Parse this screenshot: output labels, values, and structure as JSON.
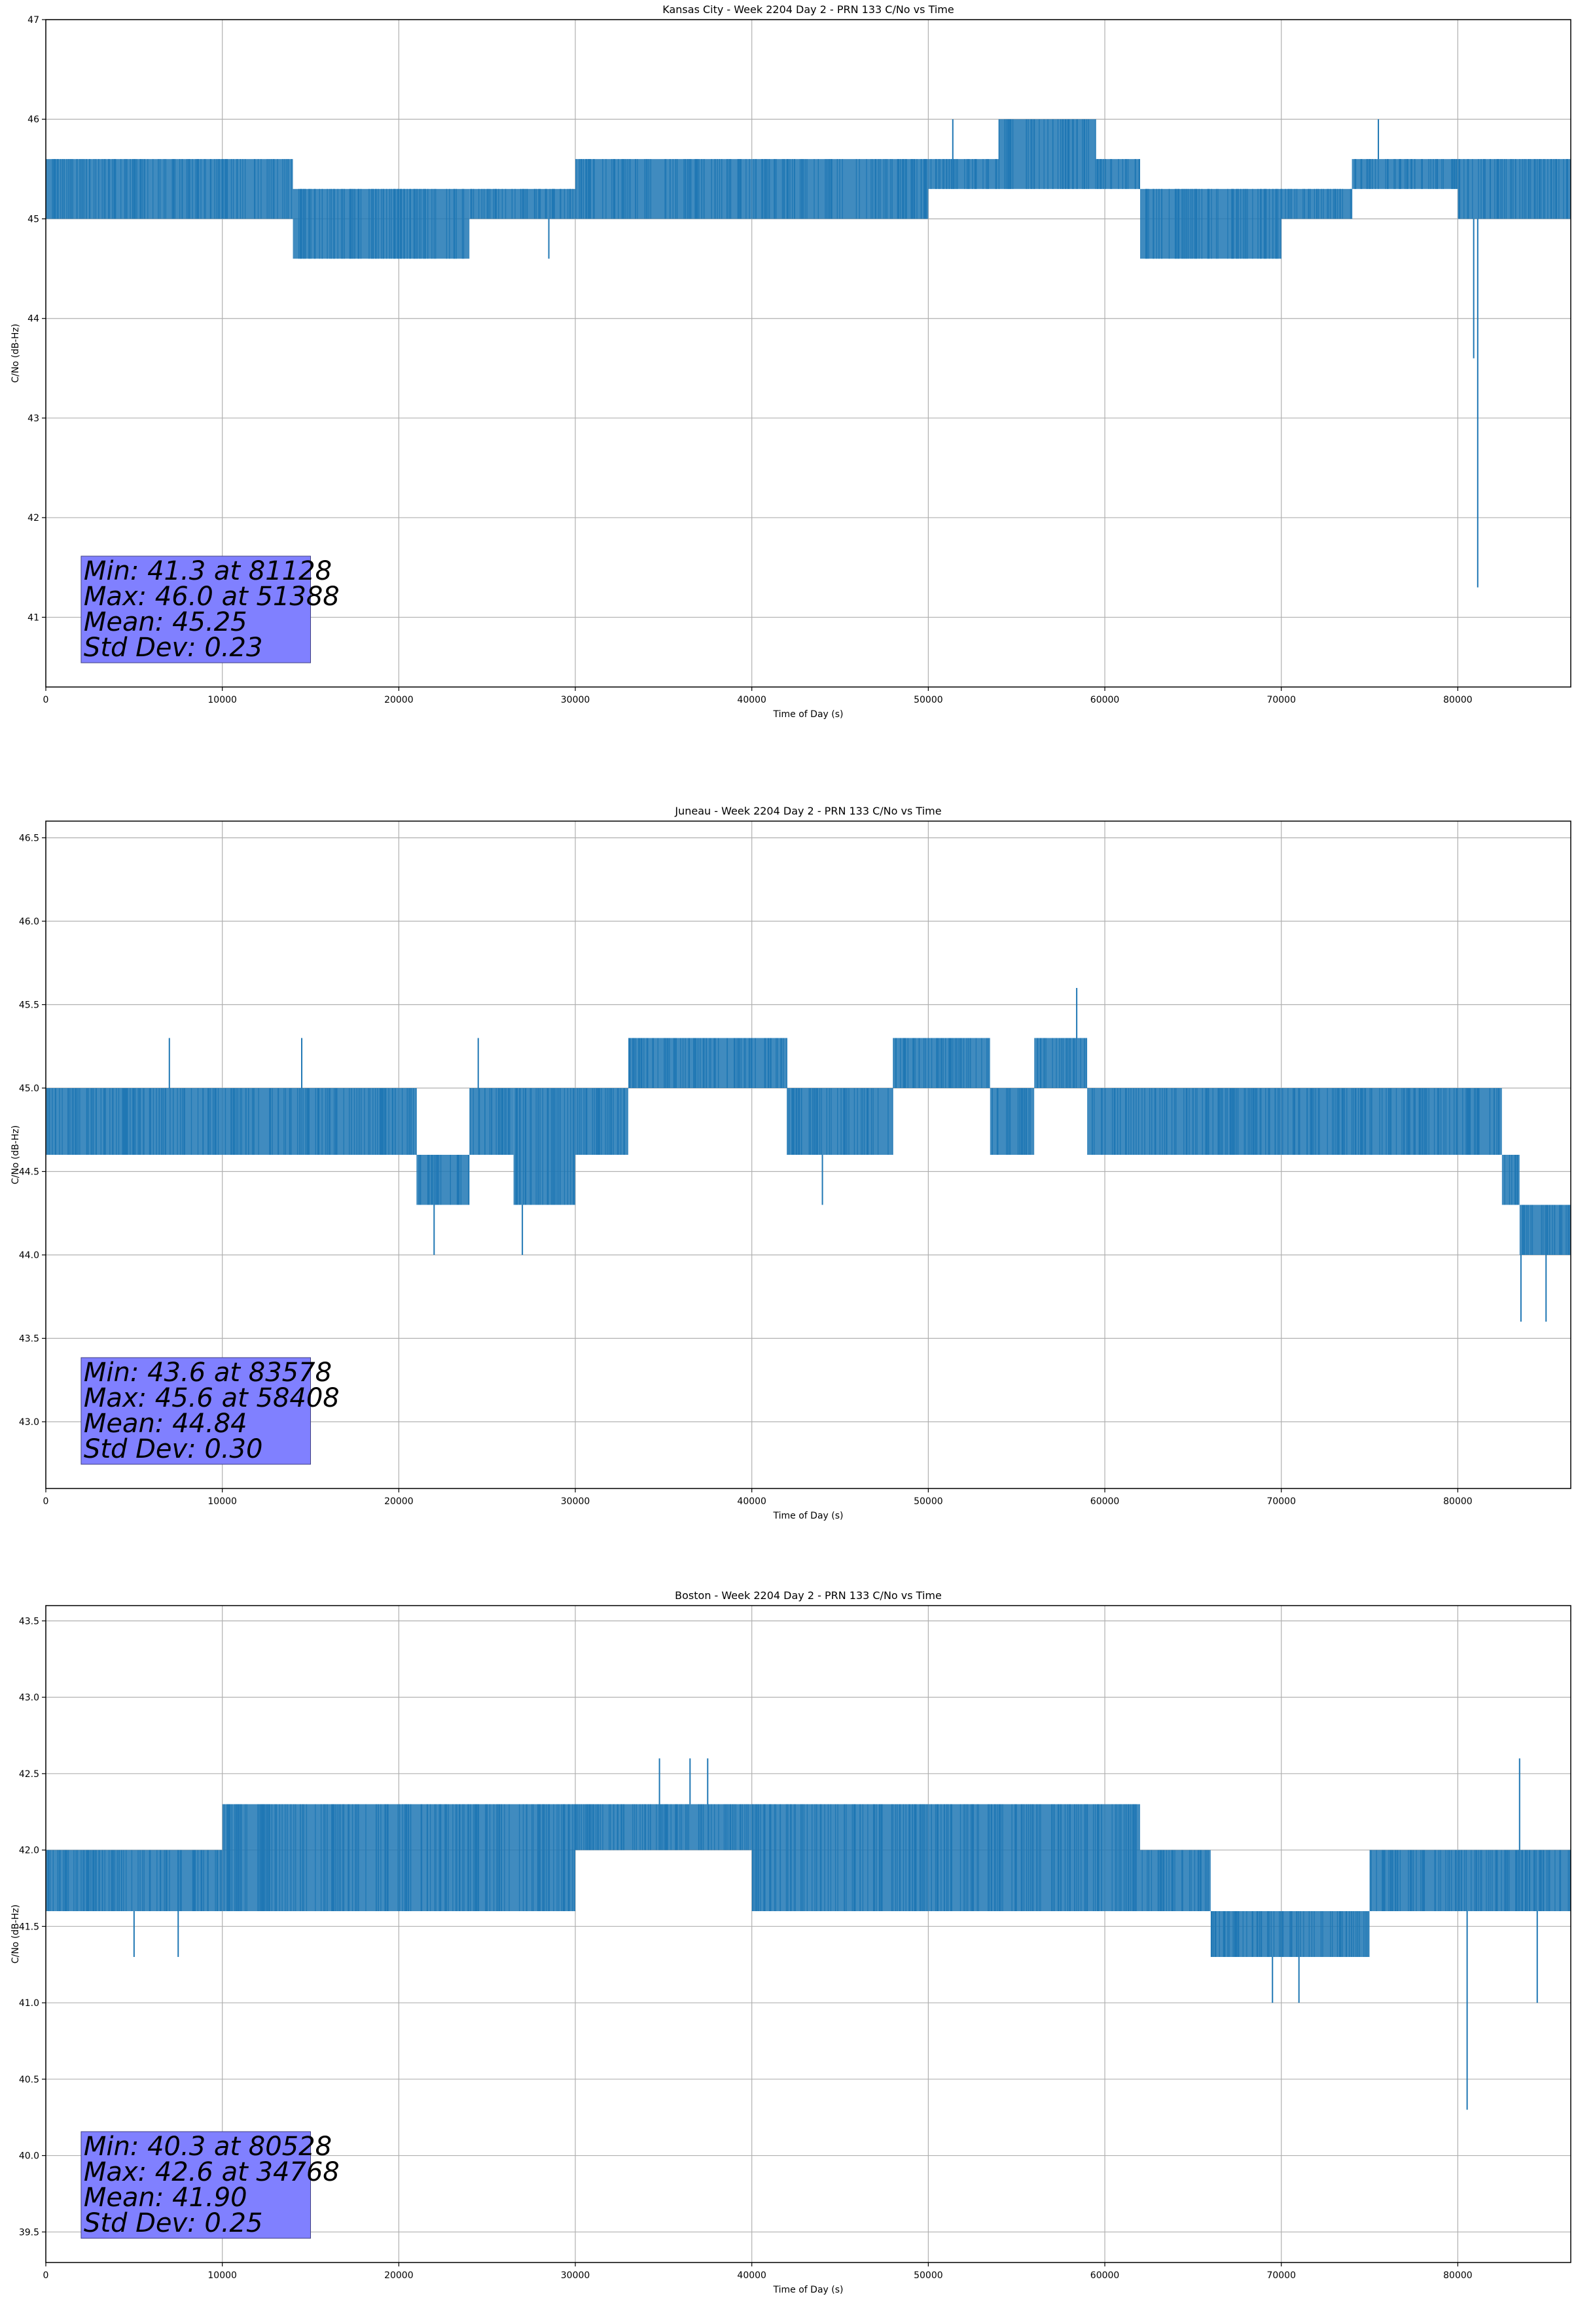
{
  "charts": [
    {
      "type": "line",
      "title": "Kansas City - Week 2204 Day 2 - PRN 133 C/No vs Time",
      "xlabel": "Time of Day (s)",
      "ylabel": "C/No (dB-Hz)",
      "xlim": [
        0,
        86400
      ],
      "ylim": [
        40.3,
        47.0
      ],
      "xticks": [
        0,
        10000,
        20000,
        30000,
        40000,
        50000,
        60000,
        70000,
        80000
      ],
      "yticks": [
        41,
        42,
        43,
        44,
        45,
        46,
        47
      ],
      "ytick_labels": [
        "41",
        "42",
        "43",
        "44",
        "45",
        "46",
        "47"
      ],
      "grid": true,
      "series_color": "#1f77b4",
      "stats_box": {
        "lines": [
          "Min: 41.3 at 81128",
          "Max: 46.0 at 51388",
          "Mean: 45.25",
          "Std Dev: 0.23"
        ],
        "color": "#8080ff"
      },
      "segments": [
        [
          0,
          14000,
          45.0,
          45.6
        ],
        [
          14000,
          24000,
          44.6,
          45.3
        ],
        [
          24000,
          28000,
          45.0,
          45.3
        ],
        [
          28000,
          30000,
          45.0,
          45.3
        ],
        [
          30000,
          40000,
          45.0,
          45.6
        ],
        [
          40000,
          50000,
          45.0,
          45.6
        ],
        [
          50000,
          54000,
          45.3,
          45.6
        ],
        [
          54000,
          59500,
          45.3,
          46.0
        ],
        [
          59500,
          62000,
          45.3,
          45.6
        ],
        [
          62000,
          70000,
          44.6,
          45.3
        ],
        [
          70000,
          74000,
          45.0,
          45.3
        ],
        [
          74000,
          80000,
          45.3,
          45.6
        ],
        [
          80000,
          86400,
          45.0,
          45.6
        ]
      ],
      "spikes": [
        [
          81128,
          41.3
        ],
        [
          80900,
          43.6
        ],
        [
          51388,
          46.0
        ],
        [
          75500,
          46.0
        ],
        [
          28500,
          44.6
        ]
      ]
    },
    {
      "type": "line",
      "title": "Juneau - Week 2204 Day 2 - PRN 133 C/No vs Time",
      "xlabel": "Time of Day (s)",
      "ylabel": "C/No (dB-Hz)",
      "xlim": [
        0,
        86400
      ],
      "ylim": [
        42.6,
        46.6
      ],
      "xticks": [
        0,
        10000,
        20000,
        30000,
        40000,
        50000,
        60000,
        70000,
        80000
      ],
      "yticks": [
        43.0,
        43.5,
        44.0,
        44.5,
        45.0,
        45.5,
        46.0,
        46.5
      ],
      "ytick_labels": [
        "43.0",
        "43.5",
        "44.0",
        "44.5",
        "45.0",
        "45.5",
        "46.0",
        "46.5"
      ],
      "grid": true,
      "series_color": "#1f77b4",
      "stats_box": {
        "lines": [
          "Min: 43.6 at 83578",
          "Max: 45.6 at 58408",
          "Mean: 44.84",
          "Std Dev: 0.30"
        ],
        "color": "#8080ff"
      },
      "segments": [
        [
          0,
          21000,
          44.6,
          45.0
        ],
        [
          21000,
          24000,
          44.3,
          44.6
        ],
        [
          24000,
          26500,
          44.6,
          45.0
        ],
        [
          26500,
          30000,
          44.3,
          45.0
        ],
        [
          30000,
          33000,
          44.6,
          45.0
        ],
        [
          33000,
          42000,
          45.0,
          45.3
        ],
        [
          42000,
          48000,
          44.6,
          45.0
        ],
        [
          48000,
          53500,
          45.0,
          45.3
        ],
        [
          53500,
          56000,
          44.6,
          45.0
        ],
        [
          56000,
          59000,
          45.0,
          45.3
        ],
        [
          59000,
          82500,
          44.6,
          45.0
        ],
        [
          82500,
          83500,
          44.3,
          44.6
        ],
        [
          83500,
          86400,
          44.0,
          44.3
        ]
      ],
      "spikes": [
        [
          58408,
          45.6
        ],
        [
          83578,
          43.6
        ],
        [
          85000,
          43.6
        ],
        [
          22000,
          44.0
        ],
        [
          27000,
          44.0
        ],
        [
          44000,
          44.3
        ],
        [
          7000,
          45.3
        ],
        [
          14500,
          45.3
        ],
        [
          24500,
          45.3
        ]
      ]
    },
    {
      "type": "line",
      "title": "Boston - Week 2204 Day 2 - PRN 133 C/No vs Time",
      "xlabel": "Time of Day (s)",
      "ylabel": "C/No (dB-Hz)",
      "xlim": [
        0,
        86400
      ],
      "ylim": [
        39.3,
        43.6
      ],
      "xticks": [
        0,
        10000,
        20000,
        30000,
        40000,
        50000,
        60000,
        70000,
        80000
      ],
      "yticks": [
        39.5,
        40.0,
        40.5,
        41.0,
        41.5,
        42.0,
        42.5,
        43.0,
        43.5
      ],
      "ytick_labels": [
        "39.5",
        "40.0",
        "40.5",
        "41.0",
        "41.5",
        "42.0",
        "42.5",
        "43.0",
        "43.5"
      ],
      "grid": true,
      "series_color": "#1f77b4",
      "stats_box": {
        "lines": [
          "Min: 40.3 at 80528",
          "Max: 42.6 at 34768",
          "Mean: 41.90",
          "Std Dev: 0.25"
        ],
        "color": "#8080ff"
      },
      "segments": [
        [
          0,
          10000,
          41.6,
          42.0
        ],
        [
          10000,
          20000,
          41.6,
          42.3
        ],
        [
          20000,
          30000,
          41.6,
          42.3
        ],
        [
          30000,
          40000,
          42.0,
          42.3
        ],
        [
          40000,
          50000,
          41.6,
          42.3
        ],
        [
          50000,
          62000,
          41.6,
          42.3
        ],
        [
          62000,
          66000,
          41.6,
          42.0
        ],
        [
          66000,
          75000,
          41.3,
          41.6
        ],
        [
          75000,
          86400,
          41.6,
          42.0
        ]
      ],
      "spikes": [
        [
          34768,
          42.6
        ],
        [
          36500,
          42.6
        ],
        [
          37500,
          42.6
        ],
        [
          83500,
          42.6
        ],
        [
          80528,
          40.3
        ],
        [
          69500,
          41.0
        ],
        [
          71000,
          41.0
        ],
        [
          84500,
          41.0
        ],
        [
          5000,
          41.3
        ],
        [
          7500,
          41.3
        ]
      ]
    }
  ]
}
